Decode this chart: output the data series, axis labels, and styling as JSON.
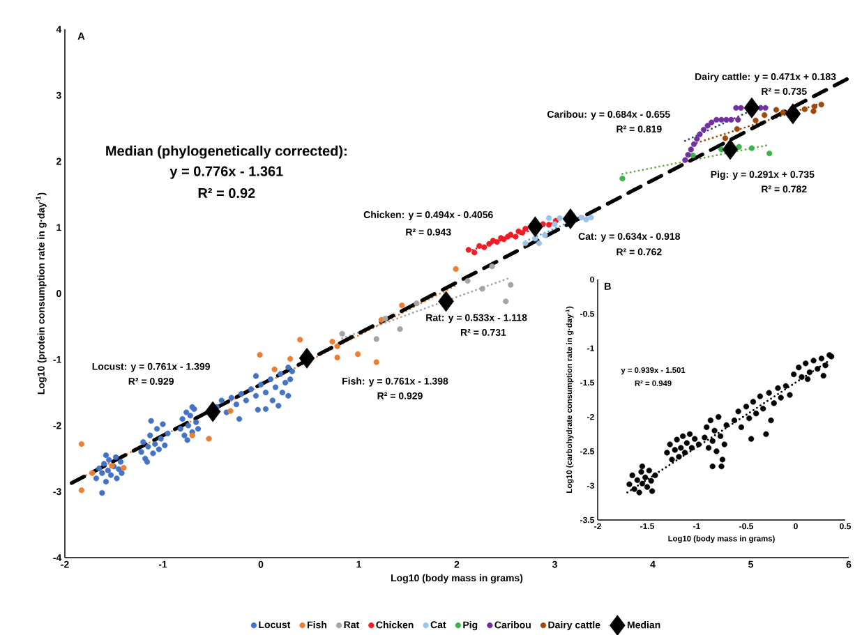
{
  "chart_data": [
    {
      "type": "scatter",
      "title": "A",
      "xlabel": "Log10 (body mass in grams)",
      "ylabel": "Log10 (protein consumption rate in g·day$^{-1}$)",
      "xlim": [
        -2,
        6
      ],
      "ylim": [
        -4,
        4
      ],
      "xticks": [
        -2,
        -1,
        0,
        1,
        2,
        3,
        4,
        5,
        6
      ],
      "yticks": [
        -4,
        -3,
        -2,
        -1,
        0,
        1,
        2,
        3,
        4
      ],
      "legend": "bottom",
      "series": [
        {
          "name": "Locust",
          "color": "#4472c4",
          "marker": "circle",
          "x": [
            -1.68,
            -1.65,
            -1.62,
            -1.6,
            -1.58,
            -1.56,
            -1.55,
            -1.53,
            -1.5,
            -1.48,
            -1.47,
            -1.45,
            -1.43,
            -1.42,
            -1.62,
            -1.58,
            -1.22,
            -1.2,
            -1.18,
            -1.15,
            -1.13,
            -1.1,
            -1.08,
            -1.06,
            -1.04,
            -1.02,
            -1.0,
            -0.98,
            -0.95,
            -1.12,
            -1.16,
            -0.82,
            -0.8,
            -0.78,
            -0.76,
            -0.74,
            -0.72,
            -0.7,
            -0.68,
            -0.66,
            -0.64,
            -0.75,
            -0.7,
            -0.45,
            -0.4,
            -0.35,
            -0.3,
            -0.25,
            -0.2,
            -0.15,
            -0.1,
            -0.05,
            0.0,
            0.05,
            0.1,
            0.12,
            0.15,
            0.2,
            0.22,
            0.25,
            0.28,
            0.3,
            -0.22,
            0.05,
            0.18,
            0.28,
            -0.05,
            0.32,
            -0.03
          ],
          "values": [
            -2.8,
            -2.65,
            -2.72,
            -2.58,
            -2.85,
            -2.68,
            -2.52,
            -2.75,
            -2.62,
            -2.48,
            -2.8,
            -2.66,
            -2.55,
            -2.72,
            -3.02,
            -2.45,
            -2.4,
            -2.25,
            -2.5,
            -2.32,
            -2.15,
            -2.42,
            -2.28,
            -2.05,
            -2.36,
            -2.2,
            -1.98,
            -2.3,
            -2.12,
            -1.93,
            -2.55,
            -2.05,
            -1.9,
            -2.15,
            -1.8,
            -2.0,
            -1.85,
            -2.1,
            -1.75,
            -1.95,
            -2.05,
            -2.22,
            -1.72,
            -1.72,
            -1.62,
            -1.8,
            -1.58,
            -1.68,
            -1.52,
            -1.62,
            -1.45,
            -1.55,
            -1.38,
            -1.5,
            -1.3,
            -1.62,
            -1.42,
            -1.22,
            -1.5,
            -1.35,
            -1.12,
            -1.3,
            -1.9,
            -1.75,
            -1.7,
            -1.55,
            -1.25,
            -1.18,
            -1.76
          ]
        },
        {
          "name": "Fish",
          "color": "#ed7d31",
          "marker": "circle",
          "x": [
            -1.83,
            -1.83,
            -1.72,
            -1.52,
            -1.4,
            -0.7,
            -0.53,
            -0.31,
            -0.01,
            0.14,
            0.3,
            0.4,
            0.73,
            0.78,
            0.78,
            0.99,
            1.18,
            1.23,
            1.44,
            1.99
          ],
          "values": [
            -2.28,
            -2.98,
            -2.72,
            -2.61,
            -2.64,
            -2.15,
            -2.2,
            -1.78,
            -0.93,
            -1.15,
            -0.99,
            -0.7,
            -0.73,
            -0.97,
            -0.8,
            -0.92,
            -1.04,
            -0.4,
            -0.18,
            0.37
          ]
        },
        {
          "name": "Rat",
          "color": "#a5a5a5",
          "marker": "circle",
          "x": [
            0.83,
            1.18,
            1.27,
            1.42,
            1.59,
            2.11,
            2.26,
            2.36,
            2.5,
            2.55
          ],
          "values": [
            -0.61,
            -0.69,
            -0.38,
            -0.54,
            -0.15,
            0.19,
            0.07,
            0.41,
            -0.12,
            0.13
          ]
        },
        {
          "name": "Chicken",
          "color": "#ee1c25",
          "marker": "circle",
          "x": [
            2.12,
            2.18,
            2.23,
            2.28,
            2.33,
            2.37,
            2.41,
            2.45,
            2.48,
            2.52,
            2.55,
            2.6,
            2.63,
            2.67,
            2.7,
            2.76,
            2.88,
            2.94,
            3.01
          ],
          "values": [
            0.66,
            0.62,
            0.72,
            0.7,
            0.75,
            0.8,
            0.78,
            0.84,
            0.82,
            0.86,
            0.89,
            0.86,
            0.94,
            0.92,
            0.98,
            null,
            1.05,
            1.04,
            1.1
          ]
        },
        {
          "name": "Cat",
          "color": "#9dc3e6",
          "marker": "circle",
          "x": [
            2.7,
            2.8,
            2.84,
            2.9,
            2.94,
            3.0,
            3.05,
            3.12,
            3.2,
            3.27,
            3.32,
            3.37
          ],
          "values": [
            0.76,
            0.83,
            0.76,
            0.88,
            1.14,
            1.05,
            1.14,
            null,
            null,
            1.15,
            1.12,
            1.15
          ]
        },
        {
          "name": "Pig",
          "color": "#3cb44b",
          "marker": "circle",
          "x": [
            3.69,
            4.41,
            4.7,
            4.88,
            5.01,
            5.19
          ],
          "values": [
            1.74,
            2.09,
            2.18,
            2.22,
            2.2,
            2.12
          ]
        },
        {
          "name": "Caribou",
          "color": "#7030a0",
          "marker": "circle",
          "x": [
            4.33,
            4.36,
            4.39,
            4.42,
            4.45,
            4.48,
            4.52,
            4.56,
            4.6,
            4.65,
            4.7,
            4.75,
            4.8,
            4.87,
            4.85,
            4.9,
            4.95,
            5.1,
            5.15
          ],
          "values": [
            2.02,
            2.1,
            2.18,
            2.26,
            2.34,
            2.41,
            2.48,
            2.54,
            2.59,
            2.63,
            2.63,
            2.63,
            2.63,
            2.63,
            2.81,
            2.81,
            null,
            2.81,
            2.81
          ]
        },
        {
          "name": "Dairy cattle",
          "color": "#9e480e",
          "marker": "circle",
          "x": [
            4.74,
            4.86,
            5.05,
            5.14,
            5.26,
            5.33,
            5.55,
            5.64,
            5.65,
            5.72
          ],
          "values": [
            2.35,
            2.49,
            2.62,
            2.7,
            2.78,
            2.74,
            2.79,
            2.76,
            2.83,
            2.86
          ]
        },
        {
          "name": "Median",
          "color": "#000000",
          "marker": "diamond",
          "x": [
            -0.49,
            0.47,
            1.89,
            2.8,
            3.16,
            4.79,
            5.01,
            5.43
          ],
          "values": [
            -1.79,
            -0.98,
            -0.12,
            1.01,
            1.13,
            2.18,
            2.81,
            2.72
          ]
        },
        {
          "type": "line",
          "color": "#ed7d31",
          "line_style": "dotted",
          "x": [
            -1.82,
            1.99
          ],
          "values": [
            -2.78,
            0.12
          ]
        },
        {
          "type": "line",
          "color": "#a5a5a5",
          "line_style": "dotted",
          "x": [
            0.83,
            2.53
          ],
          "values": [
            -0.68,
            0.23
          ]
        },
        {
          "type": "line",
          "color": "#ee1c25",
          "line_style": "dotted",
          "x": [
            2.12,
            3.01
          ],
          "values": [
            0.64,
            1.08
          ]
        },
        {
          "type": "line",
          "color": "#5b9bd5",
          "line_style": "dotted",
          "x": [
            2.7,
            3.37
          ],
          "values": [
            0.79,
            1.22
          ]
        },
        {
          "type": "line",
          "color": "#70ad47",
          "line_style": "dotted",
          "x": [
            3.69,
            5.19
          ],
          "values": [
            1.81,
            2.25
          ]
        },
        {
          "type": "line",
          "color": "#264478",
          "line_style": "dotted",
          "x": [
            4.33,
            5.11
          ],
          "values": [
            2.31,
            2.84
          ]
        },
        {
          "type": "line",
          "color": "#9e480e",
          "line_style": "dotted",
          "x": [
            4.45,
            5.72
          ],
          "values": [
            2.28,
            2.88
          ]
        },
        {
          "type": "line",
          "color": "#000000",
          "line_style": "dashed",
          "x": [
            -1.93,
            6.0
          ],
          "values": [
            -2.87,
            3.26
          ]
        }
      ],
      "annotations": [
        "Median (phylogenetically corrected):",
        "y = 0.776x - 1.361",
        "R² = 0.92",
        "Locust: y = 0.761x - 1.399",
        "R² = 0.929",
        "Fish: y = 0.761x - 1.398",
        "R² = 0.929",
        "Rat: y = 0.533x - 1.118",
        "R² = 0.731",
        "Chicken: y = 0.494x - 0.4056",
        "R² = 0.943",
        "Cat: y = 0.634x - 0.918",
        "R² = 0.762",
        "Caribou: y = 0.684x - 0.655",
        "R² = 0.819",
        "Dairy cattle: y = 0.471x + 0.183",
        "R² = 0.735",
        "Pig: y = 0.291x + 0.735",
        "R² = 0.782"
      ]
    },
    {
      "type": "scatter",
      "title": "B",
      "xlabel": "Log10 (body mass in grams)",
      "ylabel": "Log10 (carbohydrate consumption rate in g·day$^{-1}$)",
      "xlim": [
        -2,
        0.5
      ],
      "ylim": [
        -3.5,
        0
      ],
      "xticks": [
        -2,
        -1.5,
        -1,
        -0.5,
        0,
        0.5
      ],
      "yticks": [
        -3.5,
        -3,
        -2.5,
        -2,
        -1.5,
        -1,
        -0.5,
        0
      ],
      "series": [
        {
          "color": "#000000",
          "marker": "circle",
          "x": [
            -1.68,
            -1.65,
            -1.63,
            -1.6,
            -1.58,
            -1.56,
            -1.55,
            -1.52,
            -1.5,
            -1.48,
            -1.46,
            -1.45,
            -1.42,
            -1.55,
            -1.3,
            -1.27,
            -1.25,
            -1.22,
            -1.2,
            -1.18,
            -1.16,
            -1.14,
            -1.12,
            -1.1,
            -1.07,
            -1.05,
            -1.02,
            -0.98,
            -0.92,
            -0.9,
            -0.88,
            -0.86,
            -0.84,
            -0.82,
            -0.8,
            -0.78,
            -0.76,
            -0.74,
            -0.72,
            -0.7,
            -0.84,
            -0.75,
            -0.62,
            -0.58,
            -0.55,
            -0.5,
            -0.47,
            -0.43,
            -0.4,
            -0.36,
            -0.33,
            -0.3,
            -0.27,
            -0.22,
            -0.18,
            -0.15,
            -0.1,
            -0.06,
            -0.25,
            -0.45,
            -0.02,
            0.03,
            0.06,
            0.1,
            0.14,
            0.18,
            0.22,
            0.26,
            0.3,
            0.34,
            0.12,
            0.28,
            0.36
          ],
          "values": [
            -2.98,
            -2.85,
            -3.05,
            -2.92,
            -3.1,
            -2.8,
            -2.97,
            -2.88,
            -3.02,
            -2.78,
            -2.93,
            -3.08,
            -2.85,
            -2.72,
            -2.52,
            -2.4,
            -2.62,
            -2.48,
            -2.33,
            -2.58,
            -2.45,
            -2.28,
            -2.52,
            -2.38,
            -2.25,
            -2.45,
            -2.32,
            -2.4,
            -2.3,
            -2.15,
            -2.45,
            -2.05,
            -2.35,
            -2.2,
            -2.5,
            -2.0,
            -2.28,
            -2.62,
            -2.4,
            -2.12,
            -2.72,
            -2.72,
            -2.05,
            -1.92,
            -2.15,
            -1.85,
            -2.02,
            -1.78,
            -1.95,
            -1.7,
            -1.88,
            -2.25,
            -1.65,
            -1.8,
            -1.58,
            -1.72,
            -1.55,
            -1.68,
            -2.05,
            -2.32,
            -1.38,
            -1.28,
            -1.42,
            -1.22,
            -1.35,
            -1.18,
            -1.3,
            -1.15,
            -1.25,
            -1.1,
            -1.45,
            -1.4,
            -1.12
          ]
        },
        {
          "type": "line",
          "color": "#000000",
          "line_style": "dotted",
          "x": [
            -1.7,
            0.35
          ],
          "values": [
            -3.1,
            -1.17
          ]
        }
      ],
      "annotations": [
        "y = 0.939x - 1.501",
        "R² = 0.949"
      ]
    }
  ]
}
